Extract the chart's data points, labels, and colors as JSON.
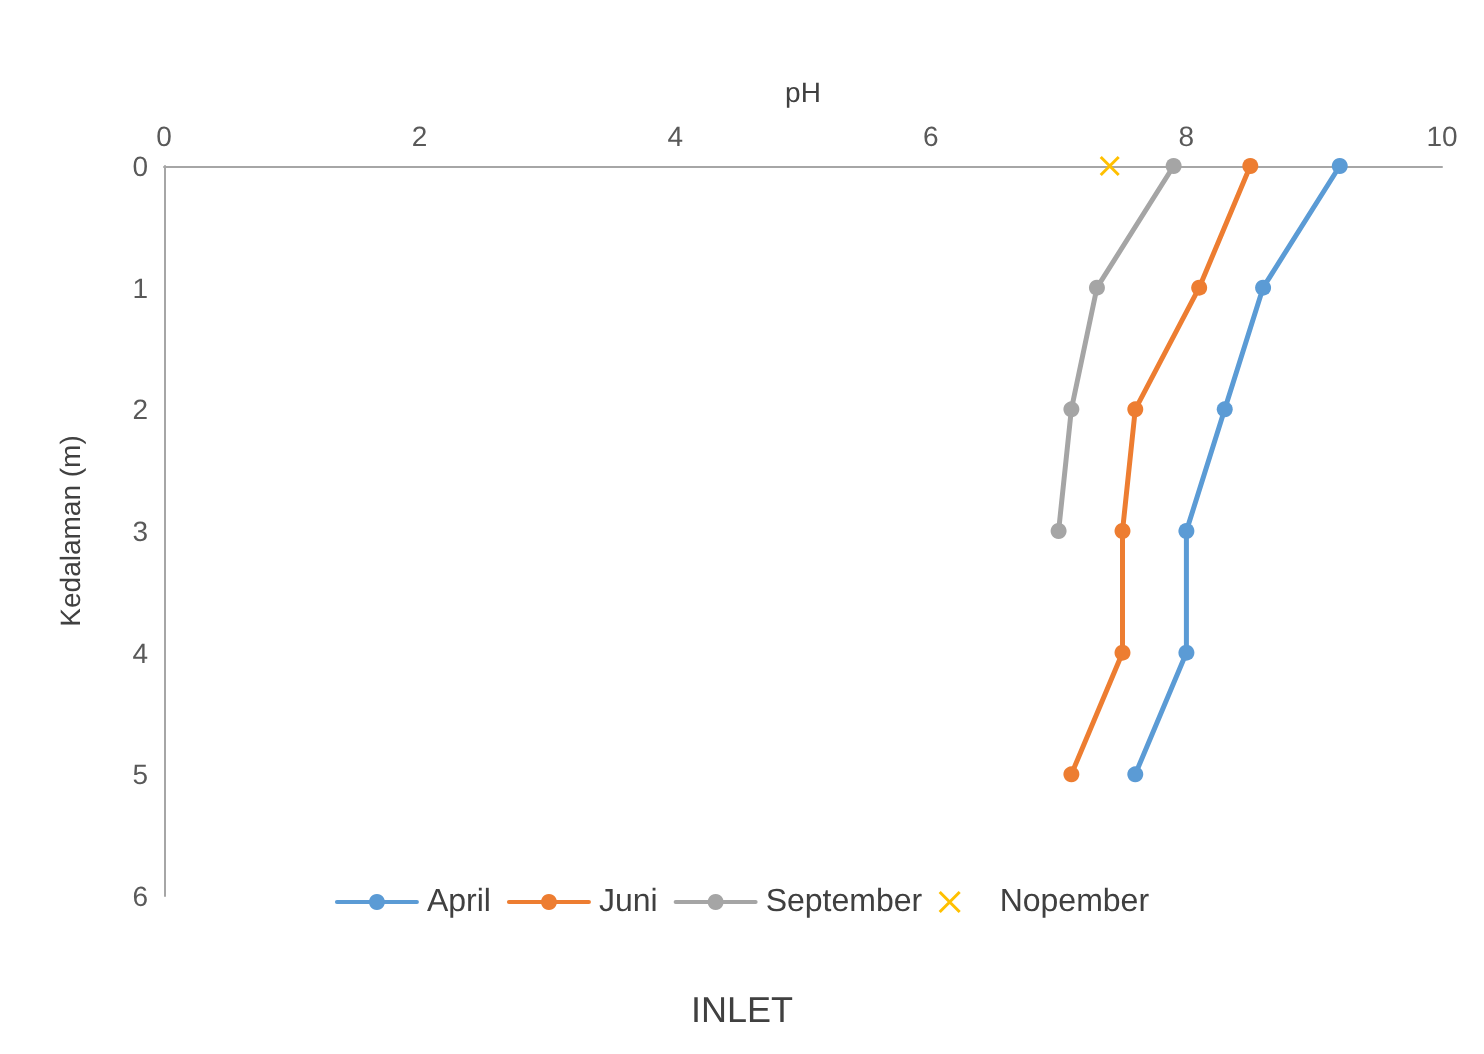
{
  "chart_data": {
    "type": "line",
    "title": "INLET",
    "xlabel": "pH",
    "ylabel": "Kedalaman (m)",
    "xlim": [
      0,
      10
    ],
    "xticks": [
      0,
      2,
      4,
      6,
      8,
      10
    ],
    "ylim": [
      6,
      0
    ],
    "yticks": [
      0,
      1,
      2,
      3,
      4,
      5,
      6
    ],
    "grid": false,
    "legend": "bottom",
    "marker": "circle",
    "line_style": "solid",
    "series": [
      {
        "name": "April",
        "color": "#5b9bd5",
        "x": [
          9.2,
          8.6,
          8.3,
          8.0,
          8.0,
          7.6
        ],
        "values": [
          0,
          1,
          2,
          3,
          4,
          5
        ]
      },
      {
        "name": "Juni",
        "color": "#ed7d31",
        "x": [
          8.5,
          8.1,
          7.6,
          7.5,
          7.5,
          7.1
        ],
        "values": [
          0,
          1,
          2,
          3,
          4,
          5
        ]
      },
      {
        "name": "September",
        "color": "#a5a5a5",
        "x": [
          7.9,
          7.3,
          7.1,
          7.0
        ],
        "values": [
          0,
          1,
          2,
          3
        ]
      },
      {
        "name": "Nopember",
        "color": "#ffc000",
        "x": [
          7.4
        ],
        "values": [
          0
        ],
        "marker": "cross"
      }
    ]
  }
}
